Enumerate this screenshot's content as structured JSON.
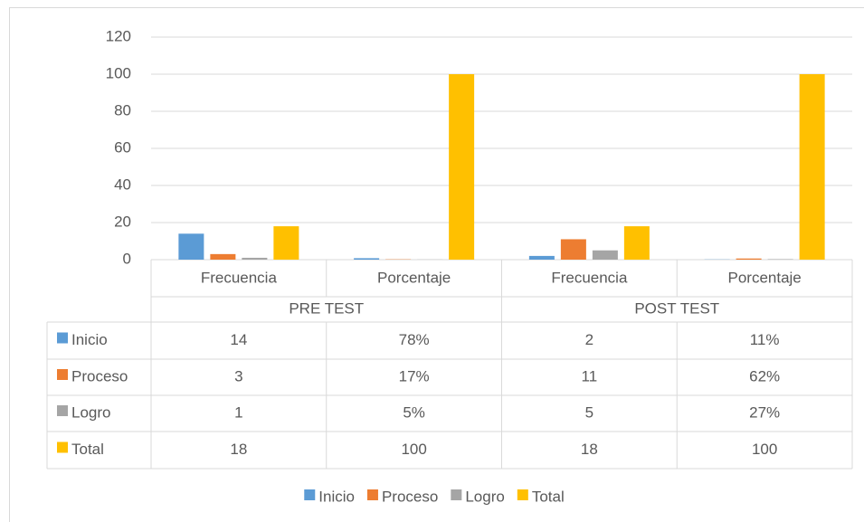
{
  "chart_data": {
    "type": "bar",
    "categories": [
      "Frecuencia",
      "Porcentaje",
      "Frecuencia",
      "Porcentaje"
    ],
    "groups": [
      "PRE TEST",
      "POST TEST"
    ],
    "series": [
      {
        "name": "Inicio",
        "color": "#5b9bd5",
        "values": [
          14,
          0.78,
          2,
          0.11
        ],
        "value_labels": [
          null,
          "78%",
          null,
          "11%"
        ]
      },
      {
        "name": "Proceso",
        "color": "#ed7d31",
        "values": [
          3,
          0.17,
          11,
          0.62
        ],
        "value_labels": [
          null,
          "17%",
          null,
          "62%"
        ]
      },
      {
        "name": "Logro",
        "color": "#a5a5a5",
        "values": [
          1,
          0.05,
          5,
          0.27
        ],
        "value_labels": [
          null,
          "5%",
          null,
          "27%"
        ]
      },
      {
        "name": "Total",
        "color": "#ffc000",
        "values": [
          18,
          100,
          18,
          100
        ],
        "value_labels": [
          null,
          null,
          null,
          null
        ]
      }
    ],
    "ylim": [
      0,
      120
    ],
    "yticks": [
      0,
      20,
      40,
      60,
      80,
      100,
      120
    ],
    "grid": true,
    "legend": "bottom",
    "data_table": true
  }
}
